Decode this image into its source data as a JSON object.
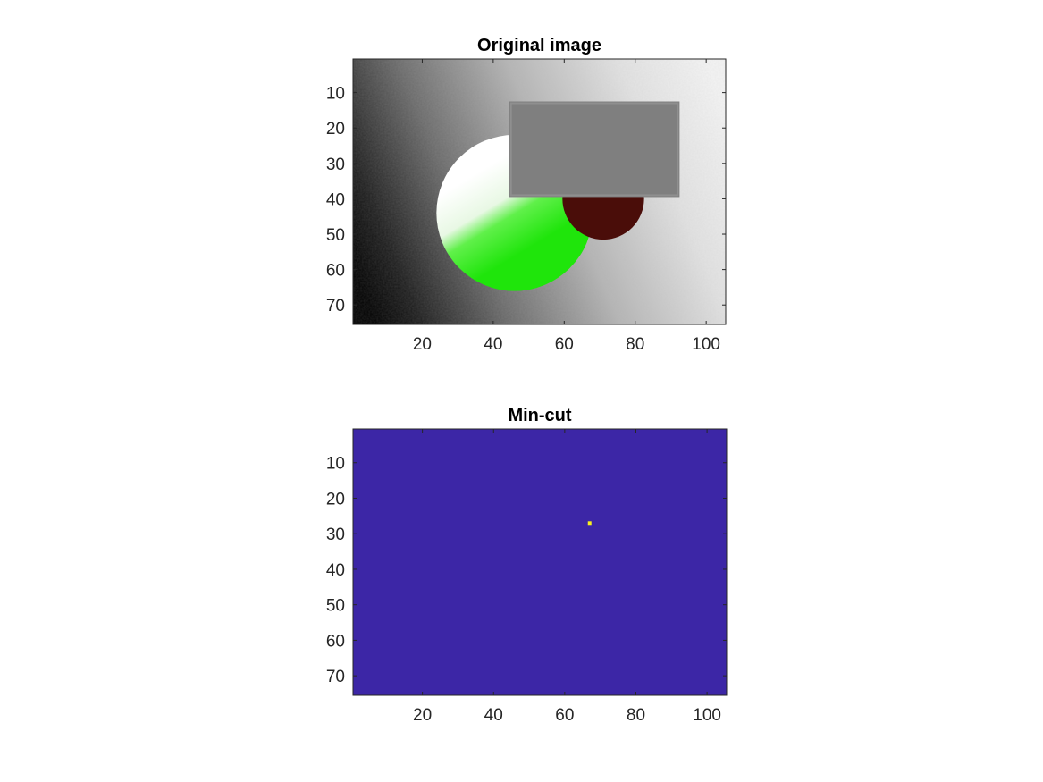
{
  "chart_data": [
    {
      "type": "heatmap",
      "title": "Original image",
      "xlim": [
        0.5,
        105.5
      ],
      "ylim": [
        0.5,
        75.5
      ],
      "y_direction": "reversed",
      "xticks": [
        20,
        40,
        60,
        80,
        100
      ],
      "yticks": [
        10,
        20,
        30,
        40,
        50,
        60,
        70
      ],
      "xtick_labels": [
        "20",
        "40",
        "60",
        "80",
        "100"
      ],
      "ytick_labels": [
        "10",
        "20",
        "30",
        "40",
        "50",
        "60",
        "70"
      ],
      "background": "grayscale gradient, dark at left to near-white at right, with noise",
      "shapes": [
        {
          "name": "green-white-disc",
          "shape": "circle",
          "center": [
            46,
            44
          ],
          "radius": 22,
          "colors": [
            "#ffffff",
            "#22ee0c"
          ]
        },
        {
          "name": "dark-red-disc",
          "shape": "circle",
          "center": [
            71,
            40
          ],
          "radius": 11.5,
          "color": "#4a0d09"
        },
        {
          "name": "gray-rectangle",
          "shape": "rectangle",
          "x": [
            44.5,
            92.5
          ],
          "y": [
            12.5,
            39.5
          ],
          "color": "#7f7f7f"
        }
      ],
      "grid": false
    },
    {
      "type": "heatmap",
      "title": "Min-cut",
      "xlim": [
        0.5,
        105.5
      ],
      "ylim": [
        0.5,
        75.5
      ],
      "y_direction": "reversed",
      "xticks": [
        20,
        40,
        60,
        80,
        100
      ],
      "yticks": [
        10,
        20,
        30,
        40,
        50,
        60,
        70
      ],
      "xtick_labels": [
        "20",
        "40",
        "60",
        "80",
        "100"
      ],
      "ytick_labels": [
        "10",
        "20",
        "30",
        "40",
        "50",
        "60",
        "70"
      ],
      "colormap": [
        "#3c26a6",
        "#f9f11c"
      ],
      "base_value": 0,
      "points": [
        {
          "x": 67,
          "y": 27,
          "value": 1
        }
      ],
      "grid": false
    }
  ]
}
